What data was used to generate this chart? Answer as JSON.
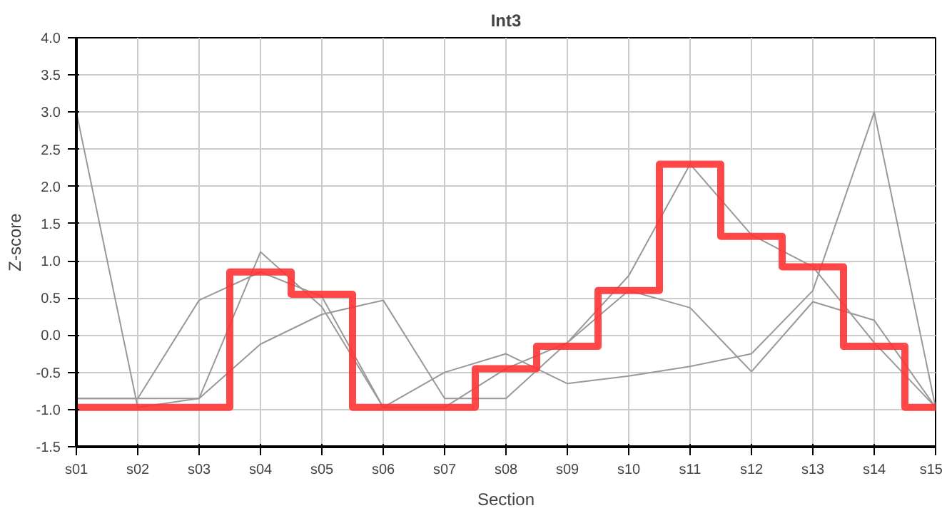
{
  "chart_data": {
    "type": "line",
    "title": "Int3",
    "xlabel": "Section",
    "ylabel": "Z-score",
    "categories": [
      "s01",
      "s02",
      "s03",
      "s04",
      "s05",
      "s06",
      "s07",
      "s08",
      "s09",
      "s10",
      "s11",
      "s12",
      "s13",
      "s14",
      "s15"
    ],
    "ylim": [
      -1.5,
      4.0
    ],
    "yticks": [
      {
        "value": -1.5,
        "label": "-1.5"
      },
      {
        "value": -1.0,
        "label": "-1.0"
      },
      {
        "value": -0.5,
        "label": "-0.5"
      },
      {
        "value": 0.0,
        "label": "0.0"
      },
      {
        "value": 0.5,
        "label": "0.5"
      },
      {
        "value": 1.0,
        "label": "1.0"
      },
      {
        "value": 1.5,
        "label": "1.5"
      },
      {
        "value": 2.0,
        "label": "2.0"
      },
      {
        "value": 2.5,
        "label": "2.5"
      },
      {
        "value": 3.0,
        "label": "3.0"
      },
      {
        "value": 3.5,
        "label": "3.5"
      },
      {
        "value": 4.0,
        "label": "4.0"
      }
    ],
    "grid": true,
    "series": [
      {
        "color": "#999999",
        "values": [
          3.0,
          -0.97,
          -0.85,
          1.12,
          0.38,
          -0.97,
          -0.5,
          -0.25,
          -0.65,
          -0.55,
          -0.42,
          -0.25,
          0.6,
          3.0,
          -0.97
        ]
      },
      {
        "color": "#999999",
        "values": [
          -0.85,
          -0.85,
          0.47,
          0.85,
          0.52,
          -0.97,
          -0.97,
          -0.45,
          -0.1,
          0.8,
          2.3,
          1.35,
          0.92,
          -0.1,
          -0.97
        ]
      },
      {
        "color": "#999999",
        "values": [
          -0.85,
          -0.85,
          -0.85,
          -0.12,
          0.28,
          0.47,
          -0.85,
          -0.85,
          -0.1,
          0.6,
          0.37,
          -0.49,
          0.45,
          0.2,
          -0.97
        ]
      },
      {
        "type": "step",
        "color": "#ff3333",
        "values": [
          -0.97,
          -0.97,
          -0.97,
          0.85,
          0.55,
          -0.97,
          -0.97,
          -0.45,
          -0.15,
          0.6,
          2.3,
          1.33,
          0.92,
          -0.15,
          -0.97
        ]
      }
    ]
  }
}
